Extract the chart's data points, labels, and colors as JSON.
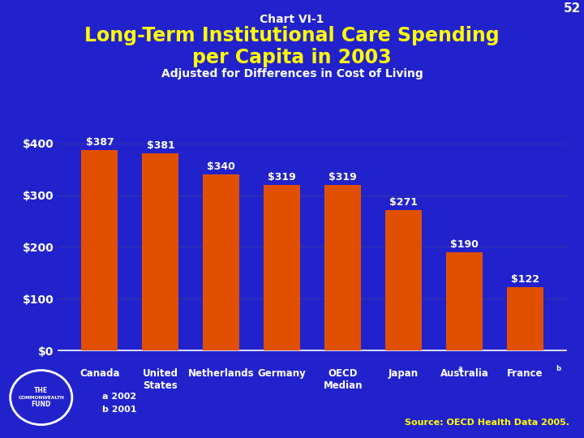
{
  "title_line1": "Chart VI-1",
  "title_line2": "Long-Term Institutional Care Spending\nper Capita in 2003",
  "subtitle": "Adjusted for Differences in Cost of Living",
  "page_number": "52",
  "categories": [
    "Canada",
    "United\nStates",
    "Netherlands",
    "Germany",
    "OECD\nMedian",
    "Japan",
    "Australia",
    "France"
  ],
  "cat_superscripts": [
    "",
    "",
    "",
    "",
    "",
    "a",
    "b",
    ""
  ],
  "values": [
    387,
    381,
    340,
    319,
    319,
    271,
    190,
    122
  ],
  "bar_color": "#E05000",
  "background_color": "#2222CC",
  "text_color_white": "#FFFFFF",
  "text_color_yellow": "#FFFF00",
  "ylim": [
    0,
    440
  ],
  "yticks": [
    0,
    100,
    200,
    300,
    400
  ],
  "ytick_labels": [
    "$0",
    "$100",
    "$200",
    "$300",
    "$400"
  ],
  "source_text": "Source: OECD Health Data 2005.",
  "footnote1": "a 2002",
  "footnote2": "b 2001",
  "title1_fontsize": 10,
  "title2_fontsize": 17,
  "subtitle_fontsize": 10
}
